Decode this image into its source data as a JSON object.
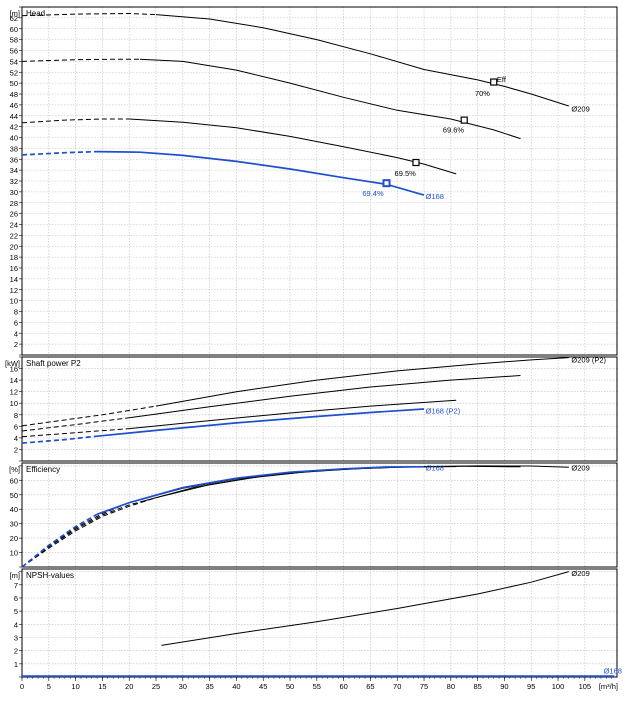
{
  "chart_data": {
    "type": "line",
    "x_unit": "[m³/h]",
    "x_ticks": [
      0,
      5,
      10,
      15,
      20,
      25,
      30,
      35,
      40,
      45,
      50,
      55,
      60,
      65,
      70,
      75,
      80,
      85,
      90,
      95,
      100,
      105
    ],
    "x_range": [
      0,
      111
    ],
    "colors": {
      "black": "#000000",
      "blue": "#1f4fd1",
      "grid": "#bdbdbd"
    },
    "panels": [
      {
        "name": "head",
        "title": "Head",
        "unit": "[m]",
        "ylim": [
          0,
          64
        ],
        "y_tick_step": 2,
        "series": [
          {
            "name": "Ø209",
            "color": "black",
            "dashed": [
              [
                0,
                62.4
              ],
              [
                10,
                62.7
              ],
              [
                20,
                62.8
              ],
              [
                25,
                62.6
              ]
            ],
            "solid": [
              [
                25,
                62.6
              ],
              [
                35,
                61.8
              ],
              [
                45,
                60.2
              ],
              [
                55,
                58.0
              ],
              [
                65,
                55.4
              ],
              [
                75,
                52.5
              ],
              [
                85,
                50.6
              ],
              [
                90,
                49.4
              ],
              [
                95,
                48.0
              ],
              [
                102,
                45.8
              ]
            ]
          },
          {
            "color": "black",
            "dashed": [
              [
                0,
                54.0
              ],
              [
                10,
                54.3
              ],
              [
                18,
                54.4
              ],
              [
                22,
                54.4
              ]
            ],
            "solid": [
              [
                22,
                54.4
              ],
              [
                30,
                54.0
              ],
              [
                40,
                52.4
              ],
              [
                50,
                50.0
              ],
              [
                60,
                47.4
              ],
              [
                70,
                45.0
              ],
              [
                80,
                43.4
              ],
              [
                88,
                41.4
              ],
              [
                93,
                39.8
              ]
            ]
          },
          {
            "color": "black",
            "dashed": [
              [
                0,
                42.7
              ],
              [
                8,
                43.2
              ],
              [
                15,
                43.4
              ],
              [
                20,
                43.4
              ]
            ],
            "solid": [
              [
                20,
                43.4
              ],
              [
                30,
                42.8
              ],
              [
                40,
                41.8
              ],
              [
                50,
                40.2
              ],
              [
                60,
                38.3
              ],
              [
                70,
                36.3
              ],
              [
                75,
                35.1
              ],
              [
                81,
                33.3
              ]
            ]
          },
          {
            "name": "Ø168",
            "color": "blue",
            "dashed": [
              [
                0,
                36.8
              ],
              [
                8,
                37.2
              ],
              [
                14,
                37.4
              ]
            ],
            "solid": [
              [
                14,
                37.4
              ],
              [
                22,
                37.3
              ],
              [
                30,
                36.7
              ],
              [
                40,
                35.6
              ],
              [
                50,
                34.2
              ],
              [
                60,
                32.6
              ],
              [
                68,
                31.4
              ],
              [
                75,
                29.4
              ]
            ]
          }
        ],
        "labels": [
          {
            "text": "Ø209",
            "x": 102.5,
            "y": 45.3,
            "color": "black"
          },
          {
            "text": "Ø168",
            "x": 75.3,
            "y": 29.2,
            "color": "blue"
          },
          {
            "text": "Eff",
            "x": 88.6,
            "y": 50.8,
            "color": "black"
          },
          {
            "text": "70%",
            "x": 84.5,
            "y": 48.2,
            "color": "black"
          },
          {
            "text": "69.6%",
            "x": 78.5,
            "y": 41.5,
            "color": "black"
          },
          {
            "text": "69.5%",
            "x": 69.5,
            "y": 33.5,
            "color": "black"
          },
          {
            "text": "69.4%",
            "x": 63.5,
            "y": 29.8,
            "color": "blue"
          }
        ],
        "markers": [
          {
            "x": 88,
            "y": 50.2,
            "color": "black"
          },
          {
            "x": 82.5,
            "y": 43.2,
            "color": "black"
          },
          {
            "x": 73.5,
            "y": 35.4,
            "color": "black"
          },
          {
            "x": 68,
            "y": 31.6,
            "color": "blue"
          }
        ]
      },
      {
        "name": "shaft-power",
        "title": "Shaft power P2",
        "unit": "[kW]",
        "ylim": [
          0,
          18
        ],
        "y_tick_step": 2,
        "series": [
          {
            "color": "black",
            "dashed": [
              [
                0,
                6.1
              ],
              [
                15,
                8.0
              ],
              [
                25,
                9.5
              ]
            ],
            "solid": [
              [
                25,
                9.5
              ],
              [
                40,
                12.0
              ],
              [
                55,
                14.0
              ],
              [
                70,
                15.6
              ],
              [
                85,
                16.8
              ],
              [
                95,
                17.5
              ],
              [
                102,
                17.9
              ]
            ]
          },
          {
            "color": "black",
            "dashed": [
              [
                0,
                5.2
              ],
              [
                10,
                6.3
              ],
              [
                20,
                7.5
              ]
            ],
            "solid": [
              [
                20,
                7.5
              ],
              [
                35,
                9.4
              ],
              [
                50,
                11.2
              ],
              [
                65,
                12.8
              ],
              [
                80,
                14.0
              ],
              [
                93,
                14.8
              ]
            ]
          },
          {
            "color": "black",
            "dashed": [
              [
                0,
                4.2
              ],
              [
                10,
                4.9
              ],
              [
                20,
                5.6
              ]
            ],
            "solid": [
              [
                20,
                5.6
              ],
              [
                35,
                7.0
              ],
              [
                50,
                8.3
              ],
              [
                65,
                9.5
              ],
              [
                81,
                10.5
              ]
            ]
          },
          {
            "color": "blue",
            "dashed": [
              [
                0,
                3.1
              ],
              [
                8,
                3.7
              ],
              [
                14,
                4.3
              ]
            ],
            "solid": [
              [
                14,
                4.3
              ],
              [
                25,
                5.3
              ],
              [
                40,
                6.6
              ],
              [
                55,
                7.7
              ],
              [
                65,
                8.4
              ],
              [
                75,
                9.0
              ]
            ]
          }
        ],
        "labels": [
          {
            "text": "Ø209 (P2)",
            "x": 102.5,
            "y": 17.6,
            "color": "black"
          },
          {
            "text": "Ø168 (P2)",
            "x": 75.3,
            "y": 8.7,
            "color": "blue"
          }
        ],
        "markers": []
      },
      {
        "name": "efficiency",
        "title": "Efficiency",
        "unit": "[%]",
        "ylim": [
          0,
          72
        ],
        "y_tick_step": 10,
        "series": [
          {
            "color": "black",
            "dashed": [
              [
                0,
                0
              ],
              [
                5,
                13
              ],
              [
                10,
                25
              ],
              [
                15,
                35
              ],
              [
                20,
                42
              ],
              [
                25,
                48
              ]
            ],
            "solid": [
              [
                25,
                48
              ],
              [
                35,
                57
              ],
              [
                45,
                63
              ],
              [
                55,
                66.5
              ],
              [
                65,
                68.5
              ],
              [
                75,
                69.5
              ],
              [
                85,
                70.0
              ],
              [
                95,
                69.9
              ],
              [
                102,
                69.0
              ]
            ]
          },
          {
            "color": "black",
            "dashed": [
              [
                0,
                0
              ],
              [
                5,
                14
              ],
              [
                10,
                26
              ],
              [
                15,
                36
              ],
              [
                20,
                43
              ],
              [
                22,
                45
              ]
            ],
            "solid": [
              [
                22,
                45
              ],
              [
                32,
                55
              ],
              [
                42,
                61.5
              ],
              [
                52,
                65.5
              ],
              [
                62,
                68
              ],
              [
                72,
                69.3
              ],
              [
                82,
                69.7
              ],
              [
                93,
                69.4
              ]
            ]
          },
          {
            "color": "black",
            "dashed": [
              [
                0,
                0
              ],
              [
                5,
                14.5
              ],
              [
                10,
                27
              ],
              [
                15,
                37
              ],
              [
                20,
                44.5
              ]
            ],
            "solid": [
              [
                20,
                44.5
              ],
              [
                30,
                54.5
              ],
              [
                40,
                61
              ],
              [
                50,
                65.2
              ],
              [
                60,
                67.8
              ],
              [
                70,
                69.2
              ],
              [
                81,
                69.5
              ]
            ]
          },
          {
            "color": "blue",
            "dashed": [
              [
                0,
                0
              ],
              [
                5,
                15
              ],
              [
                10,
                28
              ],
              [
                14,
                36.5
              ]
            ],
            "solid": [
              [
                14,
                36.5
              ],
              [
                20,
                44.5
              ],
              [
                30,
                55
              ],
              [
                40,
                61.5
              ],
              [
                50,
                65.6
              ],
              [
                60,
                68.0
              ],
              [
                68,
                69.2
              ],
              [
                75,
                69.4
              ]
            ]
          }
        ],
        "labels": [
          {
            "text": "Ø209",
            "x": 102.5,
            "y": 69.0,
            "color": "black"
          },
          {
            "text": "Ø168",
            "x": 75.3,
            "y": 69.0,
            "color": "blue"
          }
        ],
        "markers": []
      },
      {
        "name": "npsh",
        "title": "NPSH-values",
        "unit": "[m]",
        "ylim": [
          0,
          8.2
        ],
        "y_tick_step": 1,
        "series": [
          {
            "color": "black",
            "dashed": [],
            "solid": [
              [
                26,
                2.4
              ],
              [
                40,
                3.3
              ],
              [
                55,
                4.2
              ],
              [
                70,
                5.2
              ],
              [
                85,
                6.3
              ],
              [
                95,
                7.2
              ],
              [
                102,
                8.0
              ]
            ]
          },
          {
            "color": "blue",
            "dashed": [],
            "solid": [
              [
                0,
                0.07
              ],
              [
                110.5,
                0.07
              ]
            ]
          }
        ],
        "labels": [
          {
            "text": "Ø209",
            "x": 102.5,
            "y": 7.9,
            "color": "black"
          },
          {
            "text": "Ø168",
            "x": 108.5,
            "y": 0.5,
            "color": "blue"
          }
        ],
        "markers": []
      }
    ]
  }
}
